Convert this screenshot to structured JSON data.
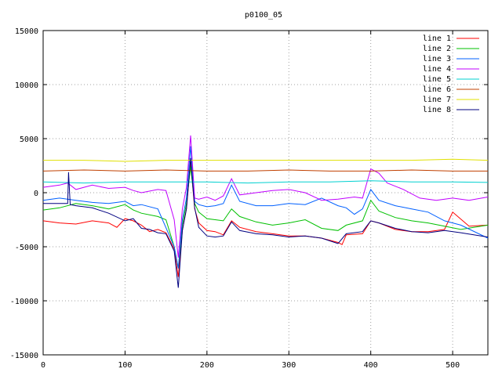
{
  "chart_data": {
    "type": "line",
    "title": "p0100_05",
    "xlabel": "",
    "ylabel": "",
    "xlim": [
      0,
      543
    ],
    "ylim": [
      -15000,
      15000
    ],
    "xticks": [
      0,
      100,
      200,
      300,
      400,
      500
    ],
    "yticks": [
      -15000,
      -10000,
      -5000,
      0,
      5000,
      10000,
      15000
    ],
    "xtick_labels": [
      "0",
      "100",
      "200",
      "300",
      "400",
      "500"
    ],
    "ytick_labels": [
      "-15000",
      "-10000",
      "-5000",
      "0",
      "5000",
      "10000",
      "15000"
    ],
    "grid": true,
    "legend_position": "top-right",
    "series": [
      {
        "name": "line 1",
        "color": "#ff0000",
        "x": [
          0,
          20,
          40,
          60,
          80,
          90,
          100,
          110,
          120,
          130,
          140,
          150,
          160,
          165,
          170,
          175,
          180,
          185,
          190,
          200,
          210,
          220,
          230,
          240,
          260,
          280,
          300,
          320,
          340,
          360,
          365,
          370,
          390,
          400,
          410,
          430,
          450,
          470,
          490,
          500,
          520,
          543
        ],
        "y": [
          -2600,
          -2800,
          -2900,
          -2600,
          -2800,
          -3200,
          -2400,
          -2600,
          -3000,
          -3600,
          -3400,
          -3700,
          -5200,
          -7800,
          -3500,
          -1500,
          2800,
          -1500,
          -2800,
          -3500,
          -3600,
          -3900,
          -2600,
          -3200,
          -3600,
          -3800,
          -4000,
          -4000,
          -4200,
          -4600,
          -4800,
          -3900,
          -3800,
          -2600,
          -2800,
          -3400,
          -3600,
          -3600,
          -3400,
          -1800,
          -3100,
          -3000
        ]
      },
      {
        "name": "line 2",
        "color": "#00c000",
        "x": [
          0,
          20,
          40,
          60,
          80,
          100,
          110,
          120,
          140,
          150,
          160,
          165,
          170,
          175,
          180,
          185,
          190,
          200,
          210,
          220,
          230,
          240,
          260,
          280,
          300,
          320,
          340,
          360,
          370,
          390,
          400,
          410,
          430,
          450,
          470,
          490,
          510,
          543
        ],
        "y": [
          -1600,
          -1400,
          -1000,
          -1200,
          -1500,
          -1100,
          -1600,
          -1900,
          -2200,
          -2500,
          -5000,
          -7000,
          -3000,
          -1000,
          2400,
          -1000,
          -1800,
          -2400,
          -2500,
          -2600,
          -1500,
          -2200,
          -2700,
          -3000,
          -2800,
          -2500,
          -3300,
          -3500,
          -3000,
          -2600,
          -700,
          -1700,
          -2300,
          -2600,
          -2800,
          -3100,
          -3400,
          -3000
        ]
      },
      {
        "name": "line 3",
        "color": "#0060ff",
        "x": [
          0,
          20,
          40,
          60,
          80,
          100,
          110,
          120,
          140,
          160,
          165,
          170,
          175,
          180,
          185,
          190,
          200,
          210,
          220,
          230,
          240,
          260,
          280,
          300,
          320,
          340,
          360,
          370,
          380,
          390,
          400,
          410,
          430,
          450,
          470,
          490,
          510,
          543
        ],
        "y": [
          -700,
          -500,
          -700,
          -900,
          -1000,
          -800,
          -1200,
          -1100,
          -1500,
          -5000,
          -7000,
          -2500,
          -500,
          4300,
          -800,
          -1100,
          -1300,
          -1200,
          -1000,
          700,
          -800,
          -1200,
          -1200,
          -1000,
          -1100,
          -500,
          -1200,
          -1400,
          -2000,
          -1500,
          300,
          -700,
          -1200,
          -1500,
          -1800,
          -2600,
          -3000,
          -4200
        ]
      },
      {
        "name": "line 4",
        "color": "#c000ff",
        "x": [
          0,
          20,
          30,
          40,
          60,
          80,
          100,
          110,
          120,
          140,
          150,
          160,
          165,
          170,
          175,
          180,
          185,
          190,
          200,
          210,
          220,
          230,
          240,
          260,
          280,
          300,
          320,
          340,
          360,
          380,
          390,
          400,
          410,
          420,
          440,
          460,
          480,
          500,
          520,
          543
        ],
        "y": [
          500,
          700,
          900,
          300,
          700,
          400,
          500,
          200,
          0,
          300,
          200,
          -2500,
          -6000,
          -1500,
          500,
          5300,
          -500,
          -600,
          -400,
          -700,
          -300,
          1300,
          -200,
          0,
          200,
          300,
          0,
          -700,
          -600,
          -400,
          -500,
          2200,
          1800,
          900,
          300,
          -500,
          -700,
          -500,
          -700,
          -400
        ]
      },
      {
        "name": "line 5",
        "color": "#00d0d0",
        "x": [
          0,
          50,
          100,
          150,
          200,
          250,
          300,
          350,
          400,
          450,
          500,
          543
        ],
        "y": [
          1000,
          900,
          1000,
          1000,
          1000,
          900,
          1000,
          1000,
          1100,
          1000,
          1000,
          950
        ]
      },
      {
        "name": "line 6",
        "color": "#c04000",
        "x": [
          0,
          50,
          100,
          150,
          200,
          250,
          300,
          350,
          400,
          450,
          500,
          543
        ],
        "y": [
          2000,
          2100,
          2000,
          2100,
          2000,
          2000,
          2100,
          2000,
          2000,
          2100,
          2000,
          2000
        ]
      },
      {
        "name": "line 7",
        "color": "#e0e000",
        "x": [
          0,
          50,
          100,
          150,
          200,
          250,
          300,
          350,
          400,
          450,
          500,
          543
        ],
        "y": [
          3000,
          3000,
          2900,
          3000,
          3000,
          3000,
          3000,
          3000,
          3000,
          3000,
          3100,
          3000
        ]
      },
      {
        "name": "line 8",
        "color": "#000080",
        "x": [
          0,
          10,
          20,
          30,
          31,
          33,
          40,
          60,
          80,
          100,
          110,
          120,
          130,
          140,
          150,
          160,
          165,
          170,
          175,
          180,
          185,
          190,
          200,
          210,
          220,
          230,
          240,
          260,
          280,
          300,
          320,
          340,
          360,
          370,
          390,
          400,
          410,
          430,
          450,
          470,
          490,
          510,
          543
        ],
        "y": [
          -1000,
          -1000,
          -1000,
          -1000,
          1900,
          -1100,
          -1200,
          -1400,
          -1900,
          -2600,
          -2400,
          -3300,
          -3400,
          -3700,
          -3800,
          -5400,
          -8800,
          -3500,
          -1500,
          3200,
          -1400,
          -3200,
          -4000,
          -4100,
          -4000,
          -2700,
          -3500,
          -3800,
          -3900,
          -4100,
          -4000,
          -4200,
          -4700,
          -3800,
          -3600,
          -2600,
          -2800,
          -3300,
          -3600,
          -3700,
          -3500,
          -3700,
          -4100
        ]
      }
    ]
  }
}
